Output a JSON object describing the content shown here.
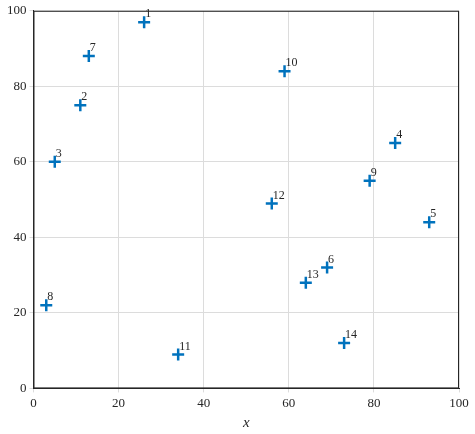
{
  "chart_data": {
    "type": "scatter",
    "x_label": "x",
    "x": [
      26,
      11,
      5,
      85,
      93,
      69,
      13,
      3,
      79,
      59,
      34,
      56,
      64,
      73
    ],
    "values": [
      97,
      75,
      60,
      65,
      44,
      32,
      88,
      22,
      55,
      84,
      9,
      49,
      28,
      12
    ],
    "point_labels": [
      "1",
      "2",
      "3",
      "4",
      "5",
      "6",
      "7",
      "8",
      "9",
      "10",
      "11",
      "12",
      "13",
      "14"
    ],
    "color": "#0072bd",
    "marker": "plus",
    "xlim": [
      0,
      100
    ],
    "xticks": [
      0,
      20,
      40,
      60,
      80,
      100
    ],
    "ylim": [
      0,
      100
    ],
    "yticks": [
      0,
      20,
      40,
      60,
      80,
      100
    ],
    "grid": true
  }
}
